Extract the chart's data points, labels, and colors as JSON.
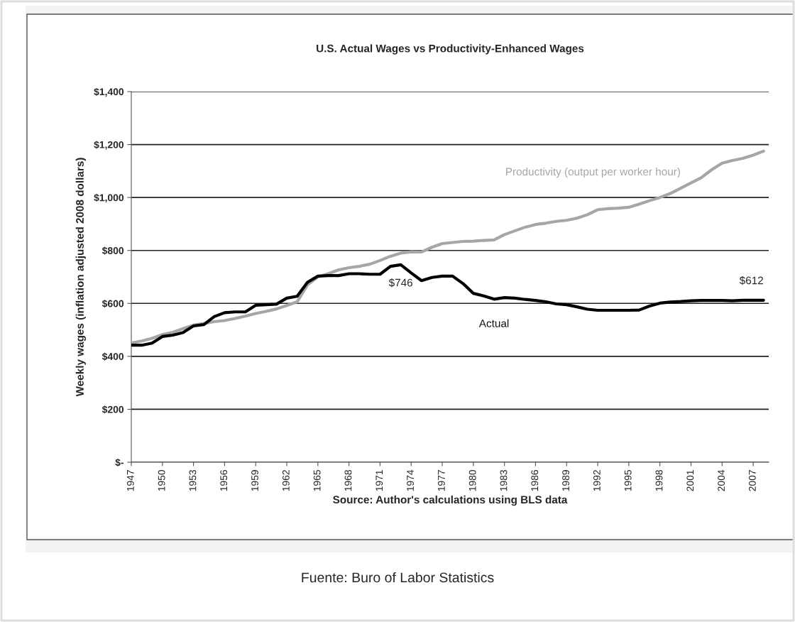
{
  "chart_data": {
    "type": "line",
    "title": "U.S. Actual Wages vs Productivity-Enhanced Wages",
    "ylabel": "Weekly wages (inflation adjusted 2008 dollars)",
    "xlabel": "Source: Author's calculations using BLS data",
    "x": [
      1947,
      1948,
      1949,
      1950,
      1951,
      1952,
      1953,
      1954,
      1955,
      1956,
      1957,
      1958,
      1959,
      1960,
      1961,
      1962,
      1963,
      1964,
      1965,
      1966,
      1967,
      1968,
      1969,
      1970,
      1971,
      1972,
      1973,
      1974,
      1975,
      1976,
      1977,
      1978,
      1979,
      1980,
      1981,
      1982,
      1983,
      1984,
      1985,
      1986,
      1987,
      1988,
      1989,
      1990,
      1991,
      1992,
      1993,
      1994,
      1995,
      1996,
      1997,
      1998,
      1999,
      2000,
      2001,
      2002,
      2003,
      2004,
      2005,
      2006,
      2007,
      2008
    ],
    "series": [
      {
        "name": "Productivity (output per worker hour)",
        "color": "#a6a6a6",
        "values": [
          450,
          458,
          468,
          482,
          491,
          505,
          518,
          524,
          531,
          535,
          543,
          552,
          562,
          570,
          579,
          592,
          606,
          670,
          700,
          712,
          727,
          735,
          740,
          748,
          762,
          778,
          790,
          795,
          794,
          812,
          826,
          830,
          834,
          835,
          838,
          840,
          860,
          874,
          888,
          898,
          903,
          910,
          914,
          922,
          935,
          954,
          958,
          960,
          963,
          975,
          988,
          1000,
          1015,
          1035,
          1055,
          1075,
          1105,
          1130,
          1140,
          1148,
          1160,
          1175
        ]
      },
      {
        "name": "Actual",
        "color": "#000000",
        "values": [
          442,
          442,
          450,
          475,
          480,
          490,
          515,
          520,
          550,
          565,
          568,
          568,
          593,
          595,
          597,
          620,
          627,
          680,
          703,
          705,
          705,
          712,
          712,
          710,
          710,
          740,
          746,
          715,
          686,
          698,
          703,
          703,
          675,
          638,
          628,
          616,
          622,
          620,
          615,
          611,
          606,
          598,
          595,
          587,
          578,
          574,
          574,
          574,
          574,
          575,
          590,
          601,
          605,
          607,
          610,
          611,
          611,
          611,
          610,
          612,
          612,
          612
        ]
      }
    ],
    "annotations": [
      {
        "text": "$746",
        "x": 1973,
        "y": 746
      },
      {
        "text": "$612",
        "x": 2008,
        "y": 612
      },
      "Fuente: Buro of Labor Statistics"
    ],
    "xlim": [
      1947,
      2008.5
    ],
    "xticks": [
      1947,
      1950,
      1953,
      1956,
      1959,
      1962,
      1965,
      1968,
      1971,
      1974,
      1977,
      1980,
      1983,
      1986,
      1989,
      1992,
      1995,
      1998,
      2001,
      2004,
      2007
    ],
    "ylim": [
      0,
      1400
    ],
    "yticks": [
      {
        "value": 0,
        "label": "$-"
      },
      {
        "value": 200,
        "label": "$200"
      },
      {
        "value": 400,
        "label": "$400"
      },
      {
        "value": 600,
        "label": "$600"
      },
      {
        "value": 800,
        "label": "$800"
      },
      {
        "value": 1000,
        "label": "$1,000"
      },
      {
        "value": 1200,
        "label": "$1,200"
      },
      {
        "value": 1400,
        "label": "$1,400"
      }
    ],
    "grid": "y",
    "legend": false,
    "line_style": "solid",
    "marker": "none"
  }
}
